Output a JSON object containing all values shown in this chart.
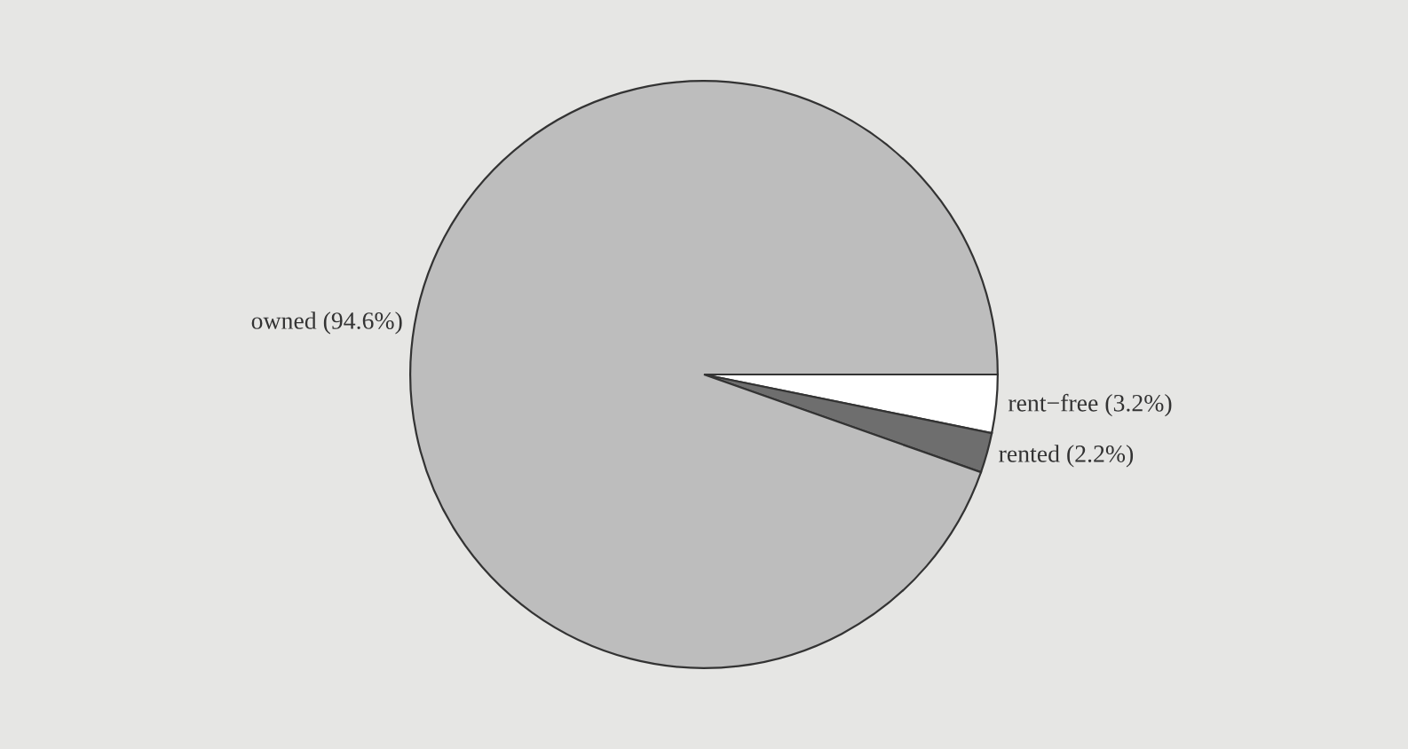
{
  "chart_data": {
    "type": "pie",
    "categories": [
      "rent−free (3.2%)",
      "rented (2.2%)",
      "owned (94.6%)"
    ],
    "values": [
      3.2,
      2.2,
      94.6
    ],
    "colors": [
      "#ffffff",
      "#6e6e6e",
      "#bdbdbd"
    ]
  }
}
